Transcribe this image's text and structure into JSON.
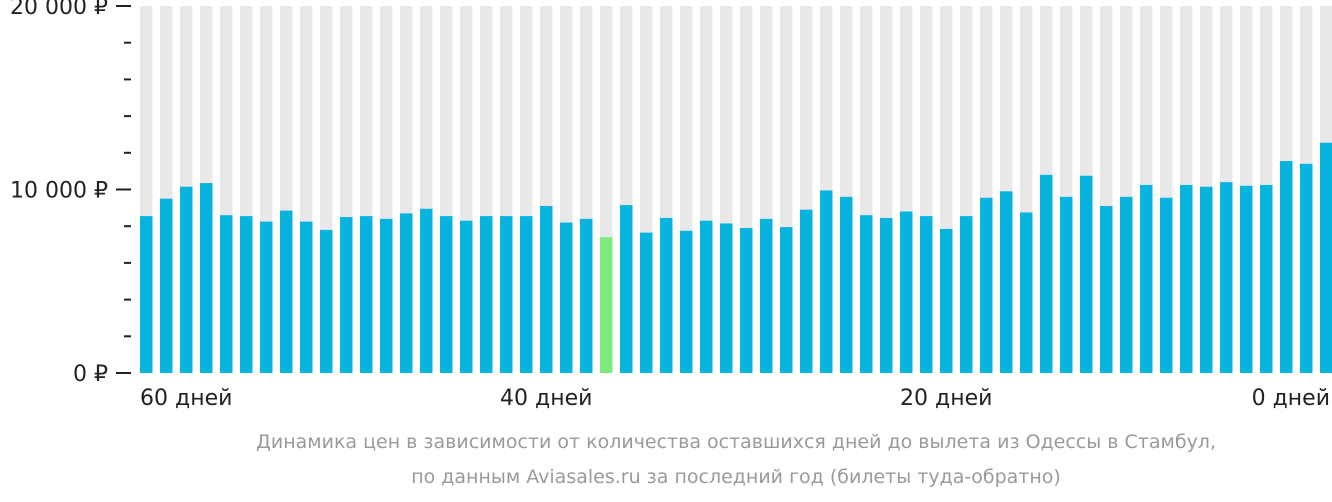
{
  "chart_data": {
    "type": "bar",
    "ylim": [
      0,
      20000
    ],
    "y_ticks": [
      {
        "value": 0,
        "label": "0 ₽"
      },
      {
        "value": 10000,
        "label": "10 000 ₽"
      },
      {
        "value": 20000,
        "label": "20 000 ₽"
      }
    ],
    "x_tick_labels": [
      {
        "days": 60,
        "label": "60 дней"
      },
      {
        "days": 40,
        "label": "40 дней"
      },
      {
        "days": 20,
        "label": "20 дней"
      },
      {
        "days": 0,
        "label": "0 дней"
      }
    ],
    "days": [
      60,
      59,
      58,
      57,
      56,
      55,
      54,
      53,
      52,
      51,
      50,
      49,
      48,
      47,
      46,
      45,
      44,
      43,
      42,
      41,
      40,
      39,
      38,
      37,
      36,
      35,
      34,
      33,
      32,
      31,
      30,
      29,
      28,
      27,
      26,
      25,
      24,
      23,
      22,
      21,
      20,
      19,
      18,
      17,
      16,
      15,
      14,
      13,
      12,
      11,
      10,
      9,
      8,
      7,
      6,
      5,
      4,
      3,
      2,
      1,
      0
    ],
    "values": [
      8550,
      9500,
      10150,
      10350,
      8600,
      8550,
      8250,
      8850,
      8250,
      7800,
      8500,
      8550,
      8400,
      8700,
      8950,
      8550,
      8300,
      8550,
      8550,
      8550,
      9100,
      8200,
      8400,
      7400,
      9150,
      7650,
      8450,
      7750,
      8300,
      8150,
      7900,
      8400,
      7950,
      8900,
      9950,
      9600,
      8600,
      8450,
      8800,
      8550,
      7850,
      8550,
      9550,
      9900,
      8750,
      10800,
      9600,
      10750,
      9100,
      9600,
      10250,
      9550,
      10250,
      10150,
      10400,
      10200,
      10250,
      11550,
      11400,
      12550,
      null
    ],
    "highlight": {
      "days": 37,
      "color": "#7eea7e"
    },
    "bar_color": "#08b3de",
    "background_bar_color": "#e8e8e8",
    "caption_line1": "Динамика цен в зависимости от количества оставшихся дней до вылета из Одессы в Стамбул,",
    "caption_line2": "по данным Aviasales.ru за последний год (билеты туда-обратно)"
  }
}
